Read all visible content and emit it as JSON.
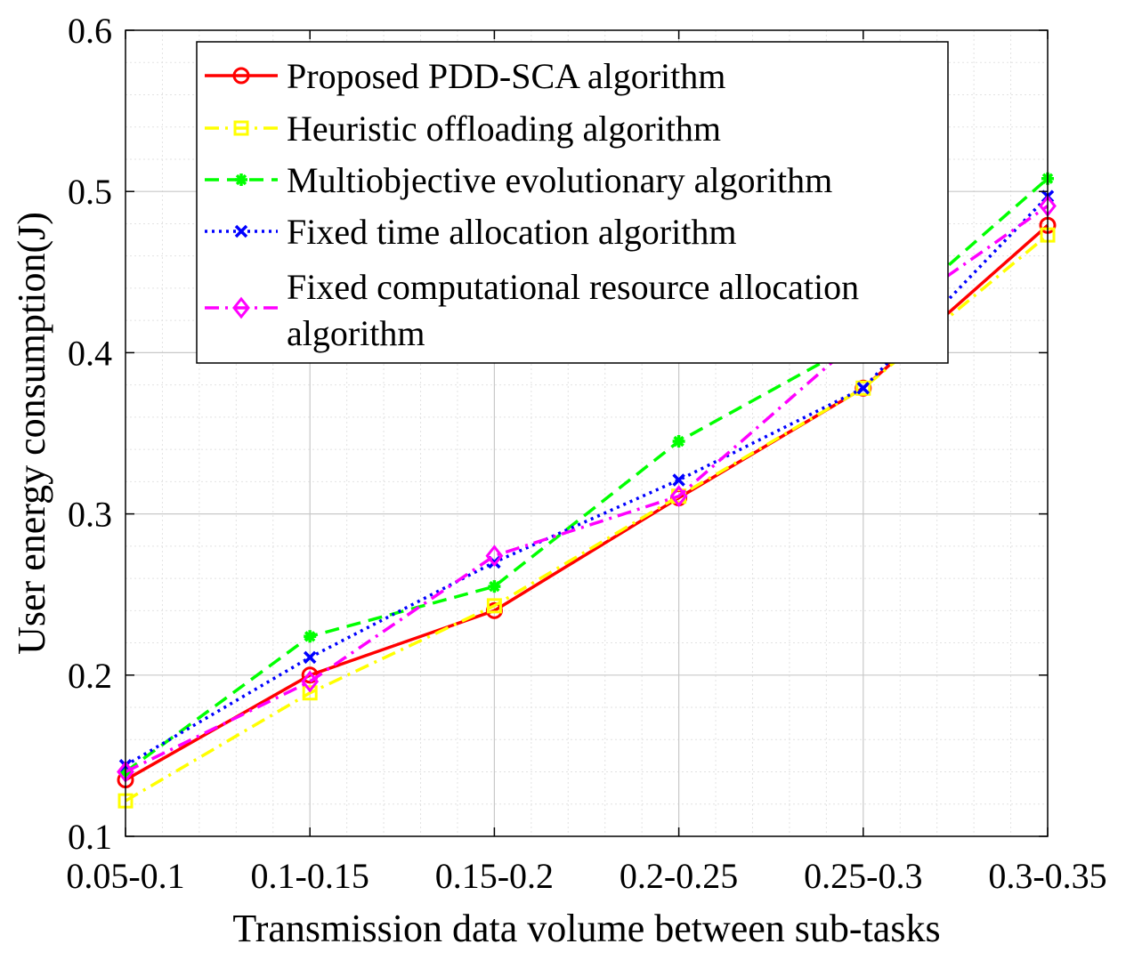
{
  "chart_data": {
    "type": "line",
    "title": "",
    "xlabel": "Transmission data volume between sub-tasks",
    "ylabel": "User energy consumption(J)",
    "categories": [
      "0.05-0.1",
      "0.1-0.15",
      "0.15-0.2",
      "0.2-0.25",
      "0.25-0.3",
      "0.3-0.35"
    ],
    "ylim": [
      0.1,
      0.6
    ],
    "yticks": [
      "0.1",
      "0.2",
      "0.3",
      "0.4",
      "0.5",
      "0.6"
    ],
    "grid": true,
    "minor_grid": true,
    "legend_position": "top-left",
    "series": [
      {
        "name": "Proposed PDD-SCA algorithm",
        "values": [
          0.135,
          0.2,
          0.24,
          0.31,
          0.378,
          0.479
        ],
        "color": "#ff0000",
        "dash": "solid",
        "marker": "circle"
      },
      {
        "name": "Heuristic offloading algorithm",
        "values": [
          0.122,
          0.189,
          0.243,
          0.311,
          0.378,
          0.473
        ],
        "color": "#ffff00",
        "dash": "dashdot",
        "marker": "square"
      },
      {
        "name": "Multiobjective evolutionary algorithm",
        "values": [
          0.14,
          0.224,
          0.255,
          0.345,
          0.408,
          0.508
        ],
        "color": "#00ff00",
        "dash": "dashed",
        "marker": "star"
      },
      {
        "name": "Fixed time allocation algorithm",
        "values": [
          0.144,
          0.211,
          0.27,
          0.321,
          0.378,
          0.497
        ],
        "color": "#0000ff",
        "dash": "dotted",
        "marker": "x"
      },
      {
        "name": "Fixed computational resource allocation algorithm",
        "values": [
          0.14,
          0.196,
          0.274,
          0.311,
          0.411,
          0.491
        ],
        "color": "#ff00ff",
        "dash": "dashdot",
        "marker": "diamond"
      }
    ],
    "legend_lines": [
      [
        "Proposed PDD-SCA algorithm"
      ],
      [
        "Heuristic offloading algorithm"
      ],
      [
        "Multiobjective evolutionary algorithm"
      ],
      [
        "Fixed time allocation algorithm"
      ],
      [
        "Fixed computational resource allocation",
        "algorithm"
      ]
    ]
  }
}
